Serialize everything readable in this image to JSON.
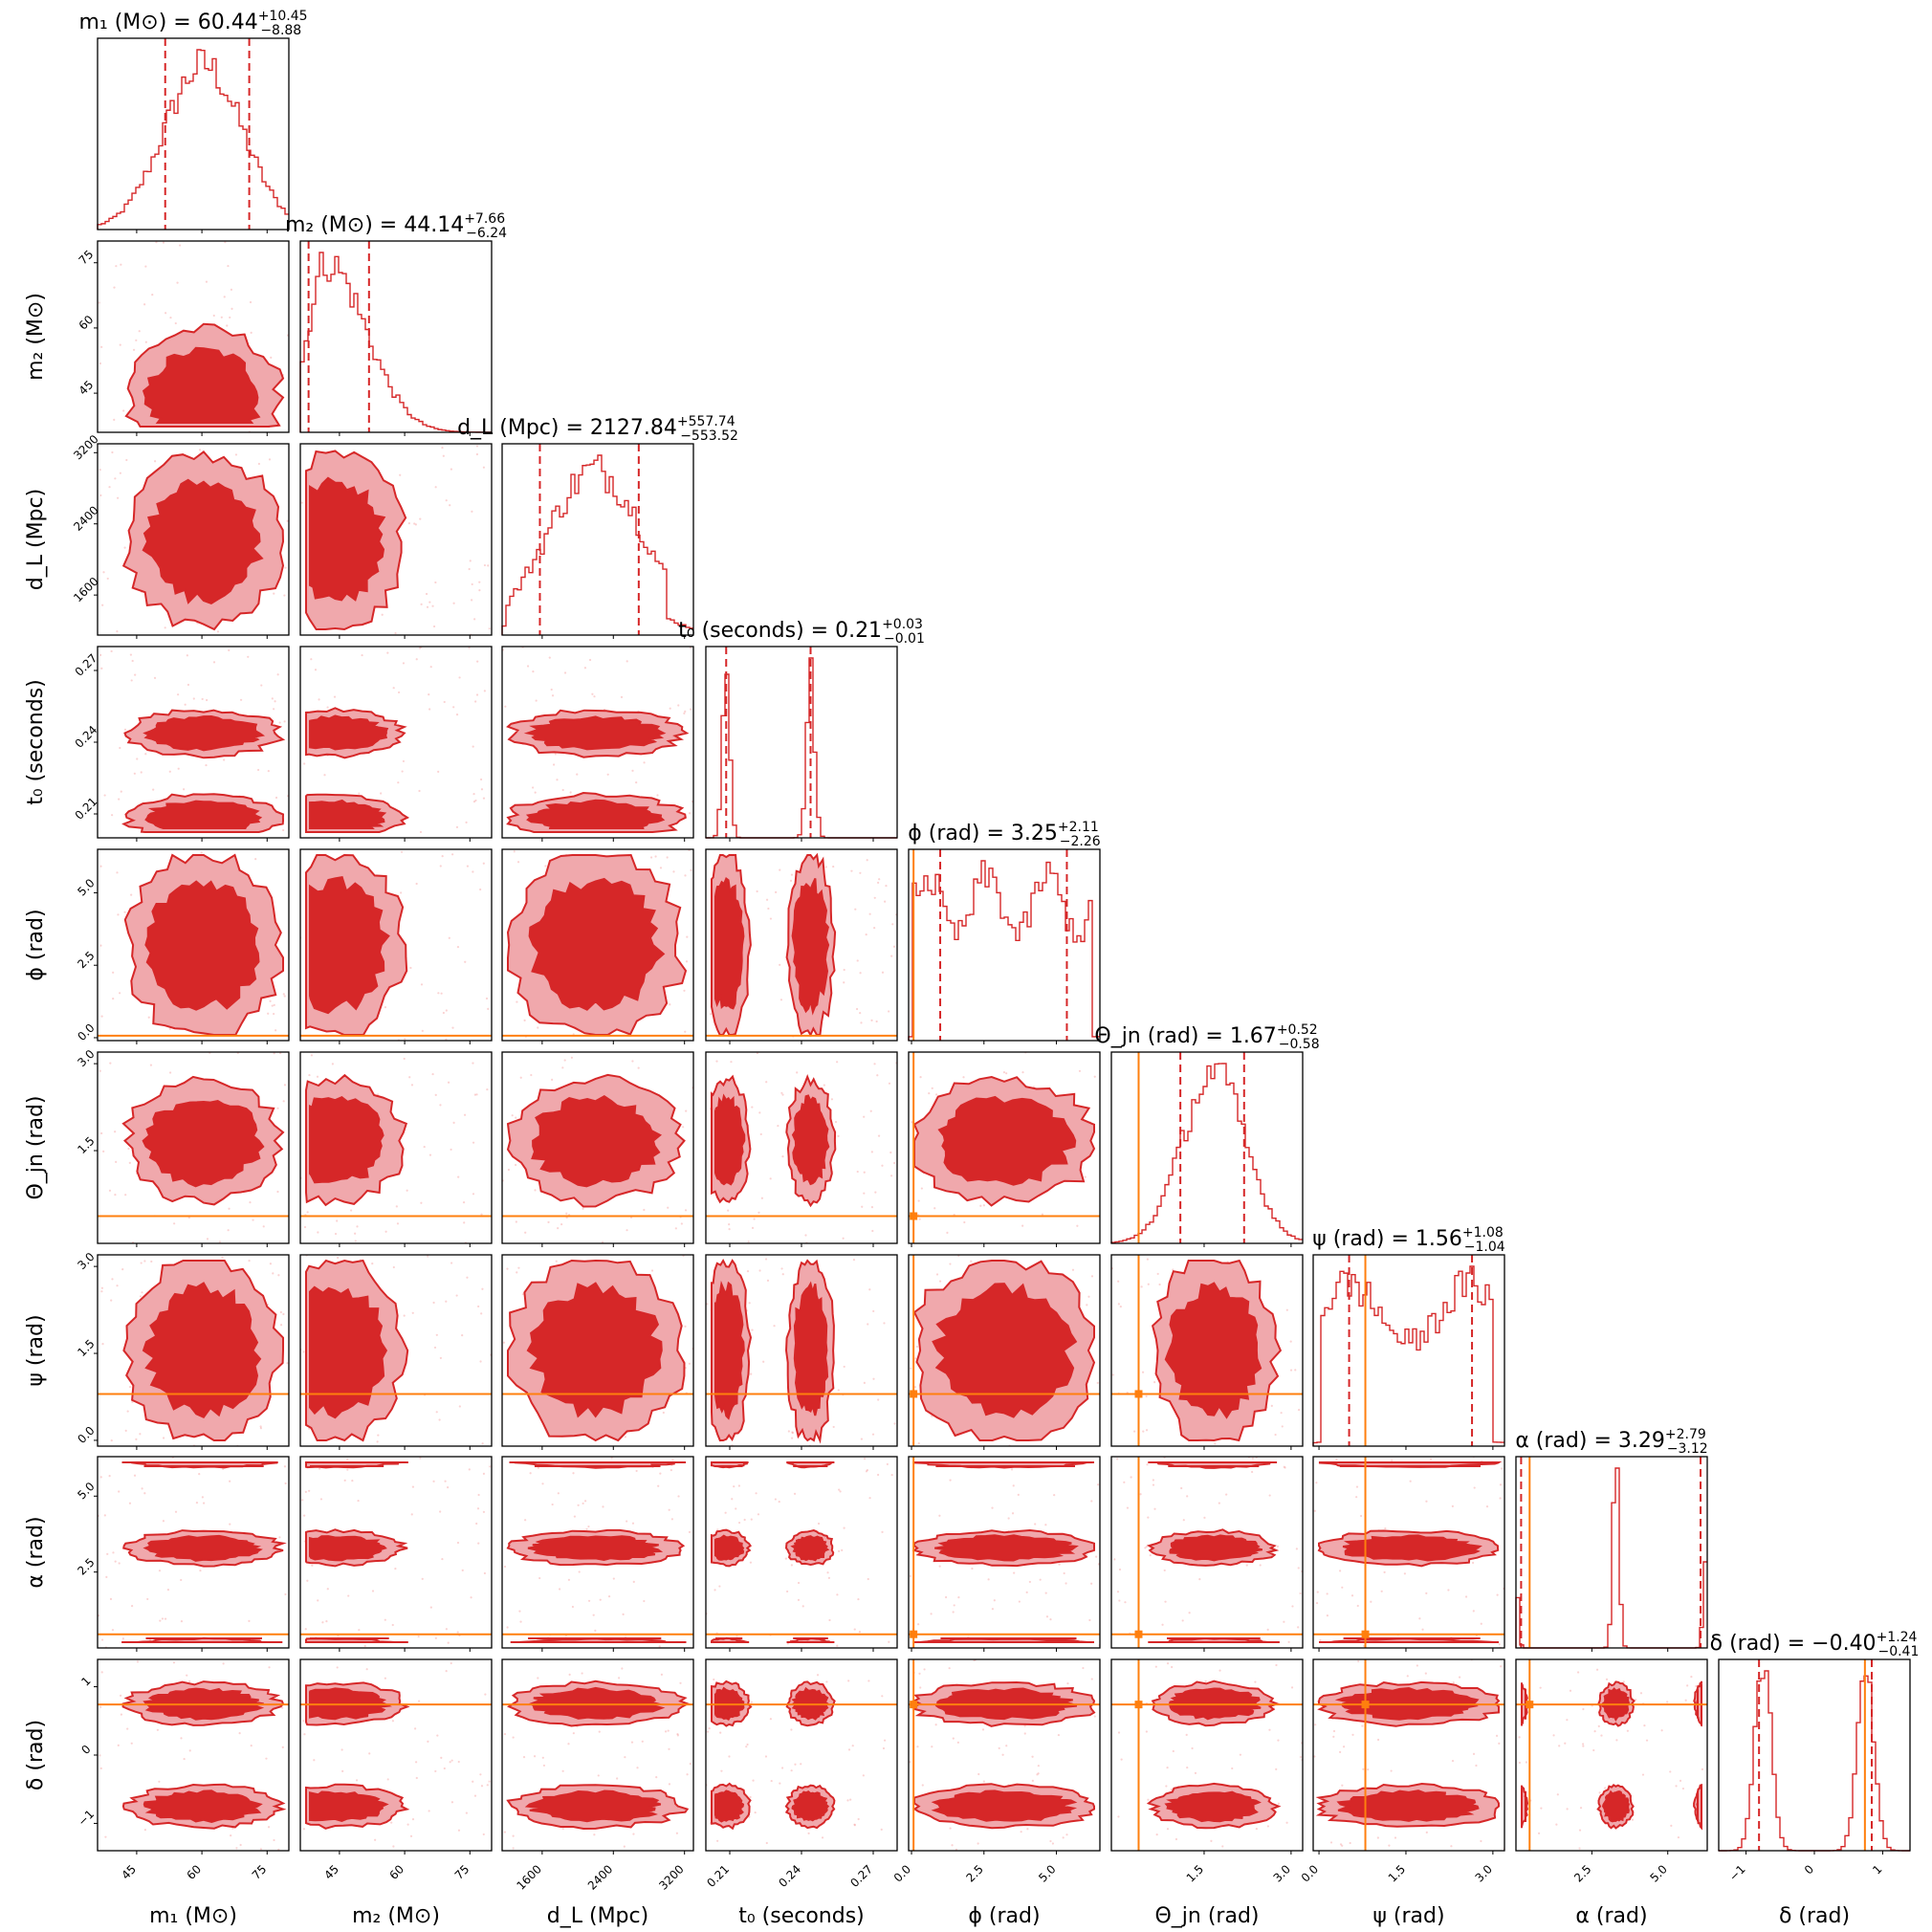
{
  "chart_data": {
    "type": "corner",
    "parameters": [
      {
        "key": "m1",
        "axis_label": "m₁ (M⊙)",
        "title_label": "m₁ (M⊙)",
        "median": "60.44",
        "plus": "+10.45",
        "minus": "−8.88",
        "range": [
          36,
          80
        ],
        "ticks": [
          45,
          60,
          75
        ],
        "tick_labels": [
          "45",
          "60",
          "75"
        ],
        "truth": null,
        "hist_shape": "single",
        "hist_center": 60.4,
        "hist_width": 10,
        "q_lo": 51.56,
        "q_hi": 70.89
      },
      {
        "key": "m2",
        "axis_label": "m₂ (M⊙)",
        "title_label": "m₂ (M⊙)",
        "median": "44.14",
        "plus": "+7.66",
        "minus": "−6.24",
        "range": [
          36,
          80
        ],
        "ticks": [
          45,
          60,
          75
        ],
        "tick_labels": [
          "45",
          "60",
          "75"
        ],
        "truth": null,
        "hist_shape": "skew",
        "hist_center": 42,
        "hist_width": 7,
        "q_lo": 37.9,
        "q_hi": 51.8
      },
      {
        "key": "dL",
        "axis_label": "d_L (Mpc)",
        "title_label": "d_L (Mpc)",
        "median": "2127.84",
        "plus": "+557.74",
        "minus": "−553.52",
        "range": [
          1150,
          3300
        ],
        "ticks": [
          1600,
          2400,
          3200
        ],
        "tick_labels": [
          "1600",
          "2400",
          "3200"
        ],
        "truth": null,
        "hist_shape": "broad",
        "hist_center": 2200,
        "hist_width": 550,
        "q_lo": 1574.32,
        "q_hi": 2685.58
      },
      {
        "key": "t0",
        "axis_label": "t₀ (seconds)",
        "title_label": "t₀ (seconds)",
        "median": "0.21",
        "plus": "+0.03",
        "minus": "−0.01",
        "range": [
          0.2,
          0.28
        ],
        "ticks": [
          0.21,
          0.24,
          0.27
        ],
        "tick_labels": [
          "0.21",
          "0.24",
          "0.27"
        ],
        "truth": null,
        "hist_shape": "bimodal_narrow",
        "hist_modes": [
          0.2085,
          0.2438
        ],
        "hist_width": 0.0015,
        "q_lo": 0.2085,
        "q_hi": 0.2438
      },
      {
        "key": "phi",
        "axis_label": "ϕ (rad)",
        "title_label": "ϕ (rad)",
        "median": "3.25",
        "plus": "+2.11",
        "minus": "−2.26",
        "range": [
          -0.1,
          6.5
        ],
        "ticks": [
          0,
          2.5,
          5
        ],
        "tick_labels": [
          "0.0",
          "2.5",
          "5.0"
        ],
        "truth": 0.07,
        "hist_shape": "flat",
        "q_lo": 0.99,
        "q_hi": 5.36
      },
      {
        "key": "theta",
        "axis_label": "Θ_jn (rad)",
        "title_label": "Θ_jn (rad)",
        "median": "1.67",
        "plus": "+0.52",
        "minus": "−0.58",
        "range": [
          -0.1,
          3.2
        ],
        "ticks": [
          1.5,
          3.0
        ],
        "tick_labels": [
          "1.5",
          "3.0"
        ],
        "truth": 0.37,
        "hist_shape": "single",
        "hist_center": 1.67,
        "hist_width": 0.6,
        "q_lo": 1.09,
        "q_hi": 2.19
      },
      {
        "key": "psi",
        "axis_label": "ψ (rad)",
        "title_label": "ψ (rad)",
        "median": "1.56",
        "plus": "+1.08",
        "minus": "−1.04",
        "range": [
          -0.1,
          3.2
        ],
        "ticks": [
          0,
          1.5,
          3.0
        ],
        "tick_labels": [
          "0.0",
          "1.5",
          "3.0"
        ],
        "truth": 0.8,
        "hist_shape": "flat",
        "q_lo": 0.52,
        "q_hi": 2.64
      },
      {
        "key": "alpha",
        "axis_label": "α (rad)",
        "title_label": "α (rad)",
        "median": "3.29",
        "plus": "+2.79",
        "minus": "−3.12",
        "range": [
          0,
          6.3
        ],
        "ticks": [
          2.5,
          5.0
        ],
        "tick_labels": [
          "2.5",
          "5.0"
        ],
        "truth": 0.45,
        "hist_shape": "alpha",
        "q_lo": 0.17,
        "q_hi": 6.08
      },
      {
        "key": "delta",
        "axis_label": "δ (rad)",
        "title_label": "δ (rad)",
        "median": "−0.40",
        "plus": "+1.24",
        "minus": "−0.41",
        "range": [
          -1.4,
          1.4
        ],
        "ticks": [
          -1,
          0,
          1
        ],
        "tick_labels": [
          "−1",
          "0",
          "1"
        ],
        "truth": 0.74,
        "hist_shape": "bimodal",
        "hist_modes": [
          -0.75,
          0.75
        ],
        "hist_width": 0.12,
        "q_lo": -0.81,
        "q_hi": 0.84
      }
    ]
  },
  "colors": {
    "accent": "#d62728",
    "light": "#f0a8ac",
    "truth": "#ff7f0e"
  }
}
